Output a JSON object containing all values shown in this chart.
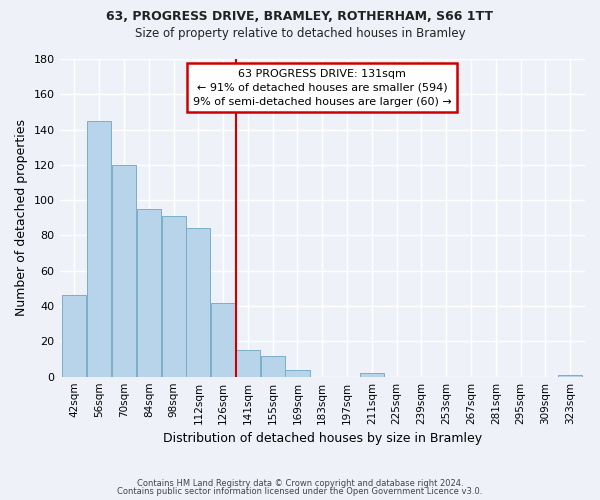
{
  "title_line1": "63, PROGRESS DRIVE, BRAMLEY, ROTHERHAM, S66 1TT",
  "title_line2": "Size of property relative to detached houses in Bramley",
  "xlabel": "Distribution of detached houses by size in Bramley",
  "ylabel": "Number of detached properties",
  "bar_labels": [
    "42sqm",
    "56sqm",
    "70sqm",
    "84sqm",
    "98sqm",
    "112sqm",
    "126sqm",
    "141sqm",
    "155sqm",
    "169sqm",
    "183sqm",
    "197sqm",
    "211sqm",
    "225sqm",
    "239sqm",
    "253sqm",
    "267sqm",
    "281sqm",
    "295sqm",
    "309sqm",
    "323sqm"
  ],
  "bar_values": [
    46,
    145,
    120,
    95,
    91,
    84,
    42,
    15,
    12,
    4,
    0,
    0,
    2,
    0,
    0,
    0,
    0,
    0,
    0,
    0,
    1
  ],
  "bar_color": "#b8d4ea",
  "bar_edge_color": "#7aaec8",
  "red_line_index": 7,
  "annotation_title": "63 PROGRESS DRIVE: 131sqm",
  "annotation_line2": "← 91% of detached houses are smaller (594)",
  "annotation_line3": "9% of semi-detached houses are larger (60) →",
  "annotation_box_color": "#ffffff",
  "annotation_box_edge_color": "#cc0000",
  "ylim": [
    0,
    180
  ],
  "yticks": [
    0,
    20,
    40,
    60,
    80,
    100,
    120,
    140,
    160,
    180
  ],
  "footer_line1": "Contains HM Land Registry data © Crown copyright and database right 2024.",
  "footer_line2": "Contains public sector information licensed under the Open Government Licence v3.0.",
  "background_color": "#eef2f8",
  "grid_color": "#ffffff"
}
